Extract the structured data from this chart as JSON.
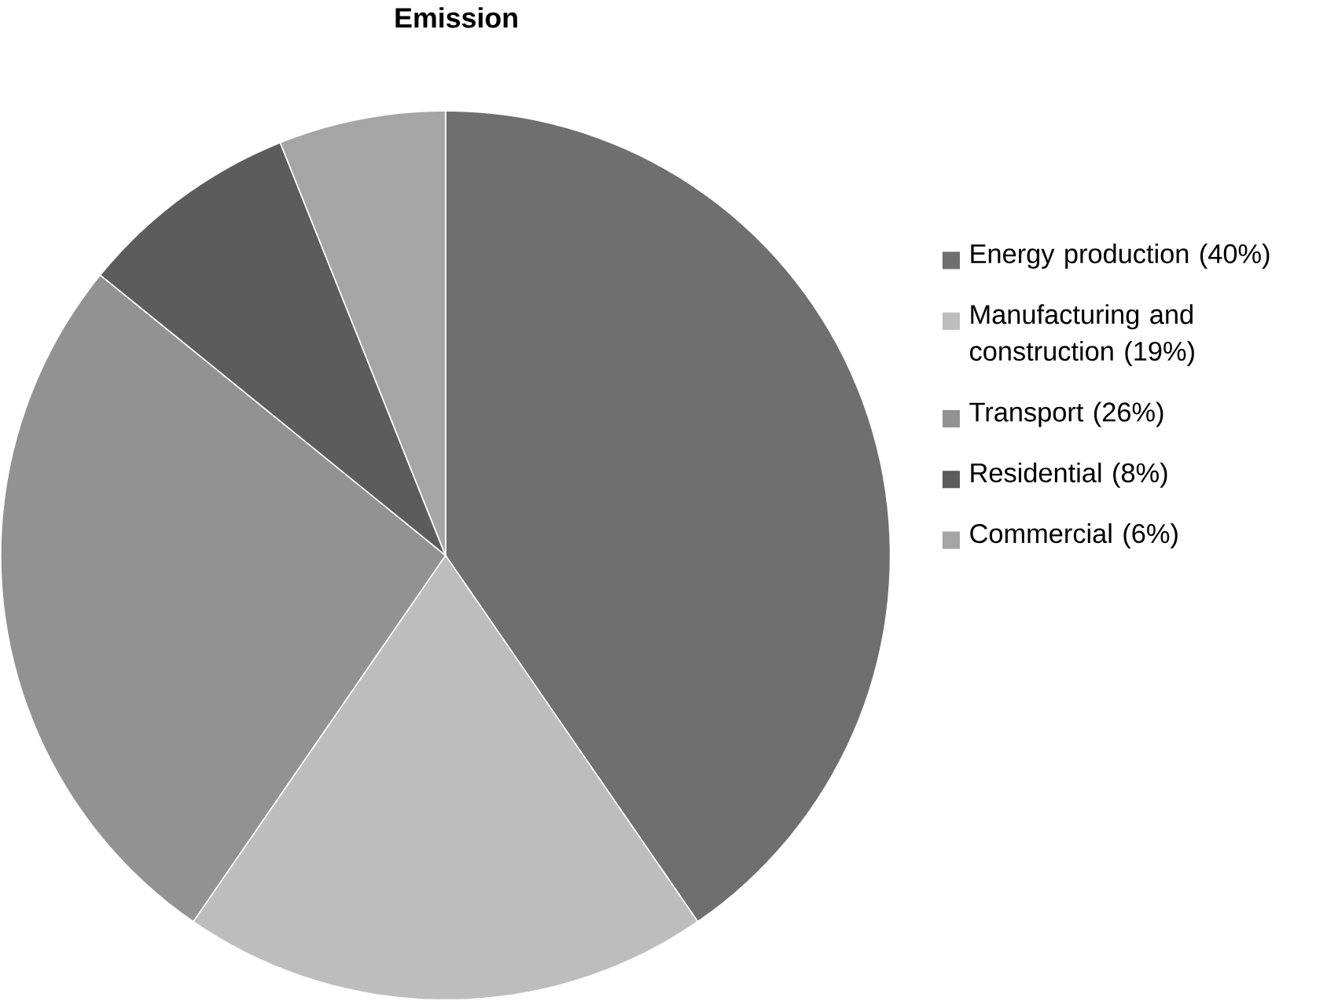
{
  "chart_data": {
    "type": "pie",
    "title": "Emission",
    "categories": [
      "Energy production (40%)",
      "Manufacturing and construction (19%)",
      "Transport (26%)",
      "Residential (8%)",
      "Commercial (6%)"
    ],
    "values": [
      40,
      19,
      26,
      8,
      6
    ],
    "colors": [
      "#6f6f6f",
      "#bdbdbd",
      "#929292",
      "#5c5c5c",
      "#a5a5a5"
    ],
    "legend": "right"
  }
}
